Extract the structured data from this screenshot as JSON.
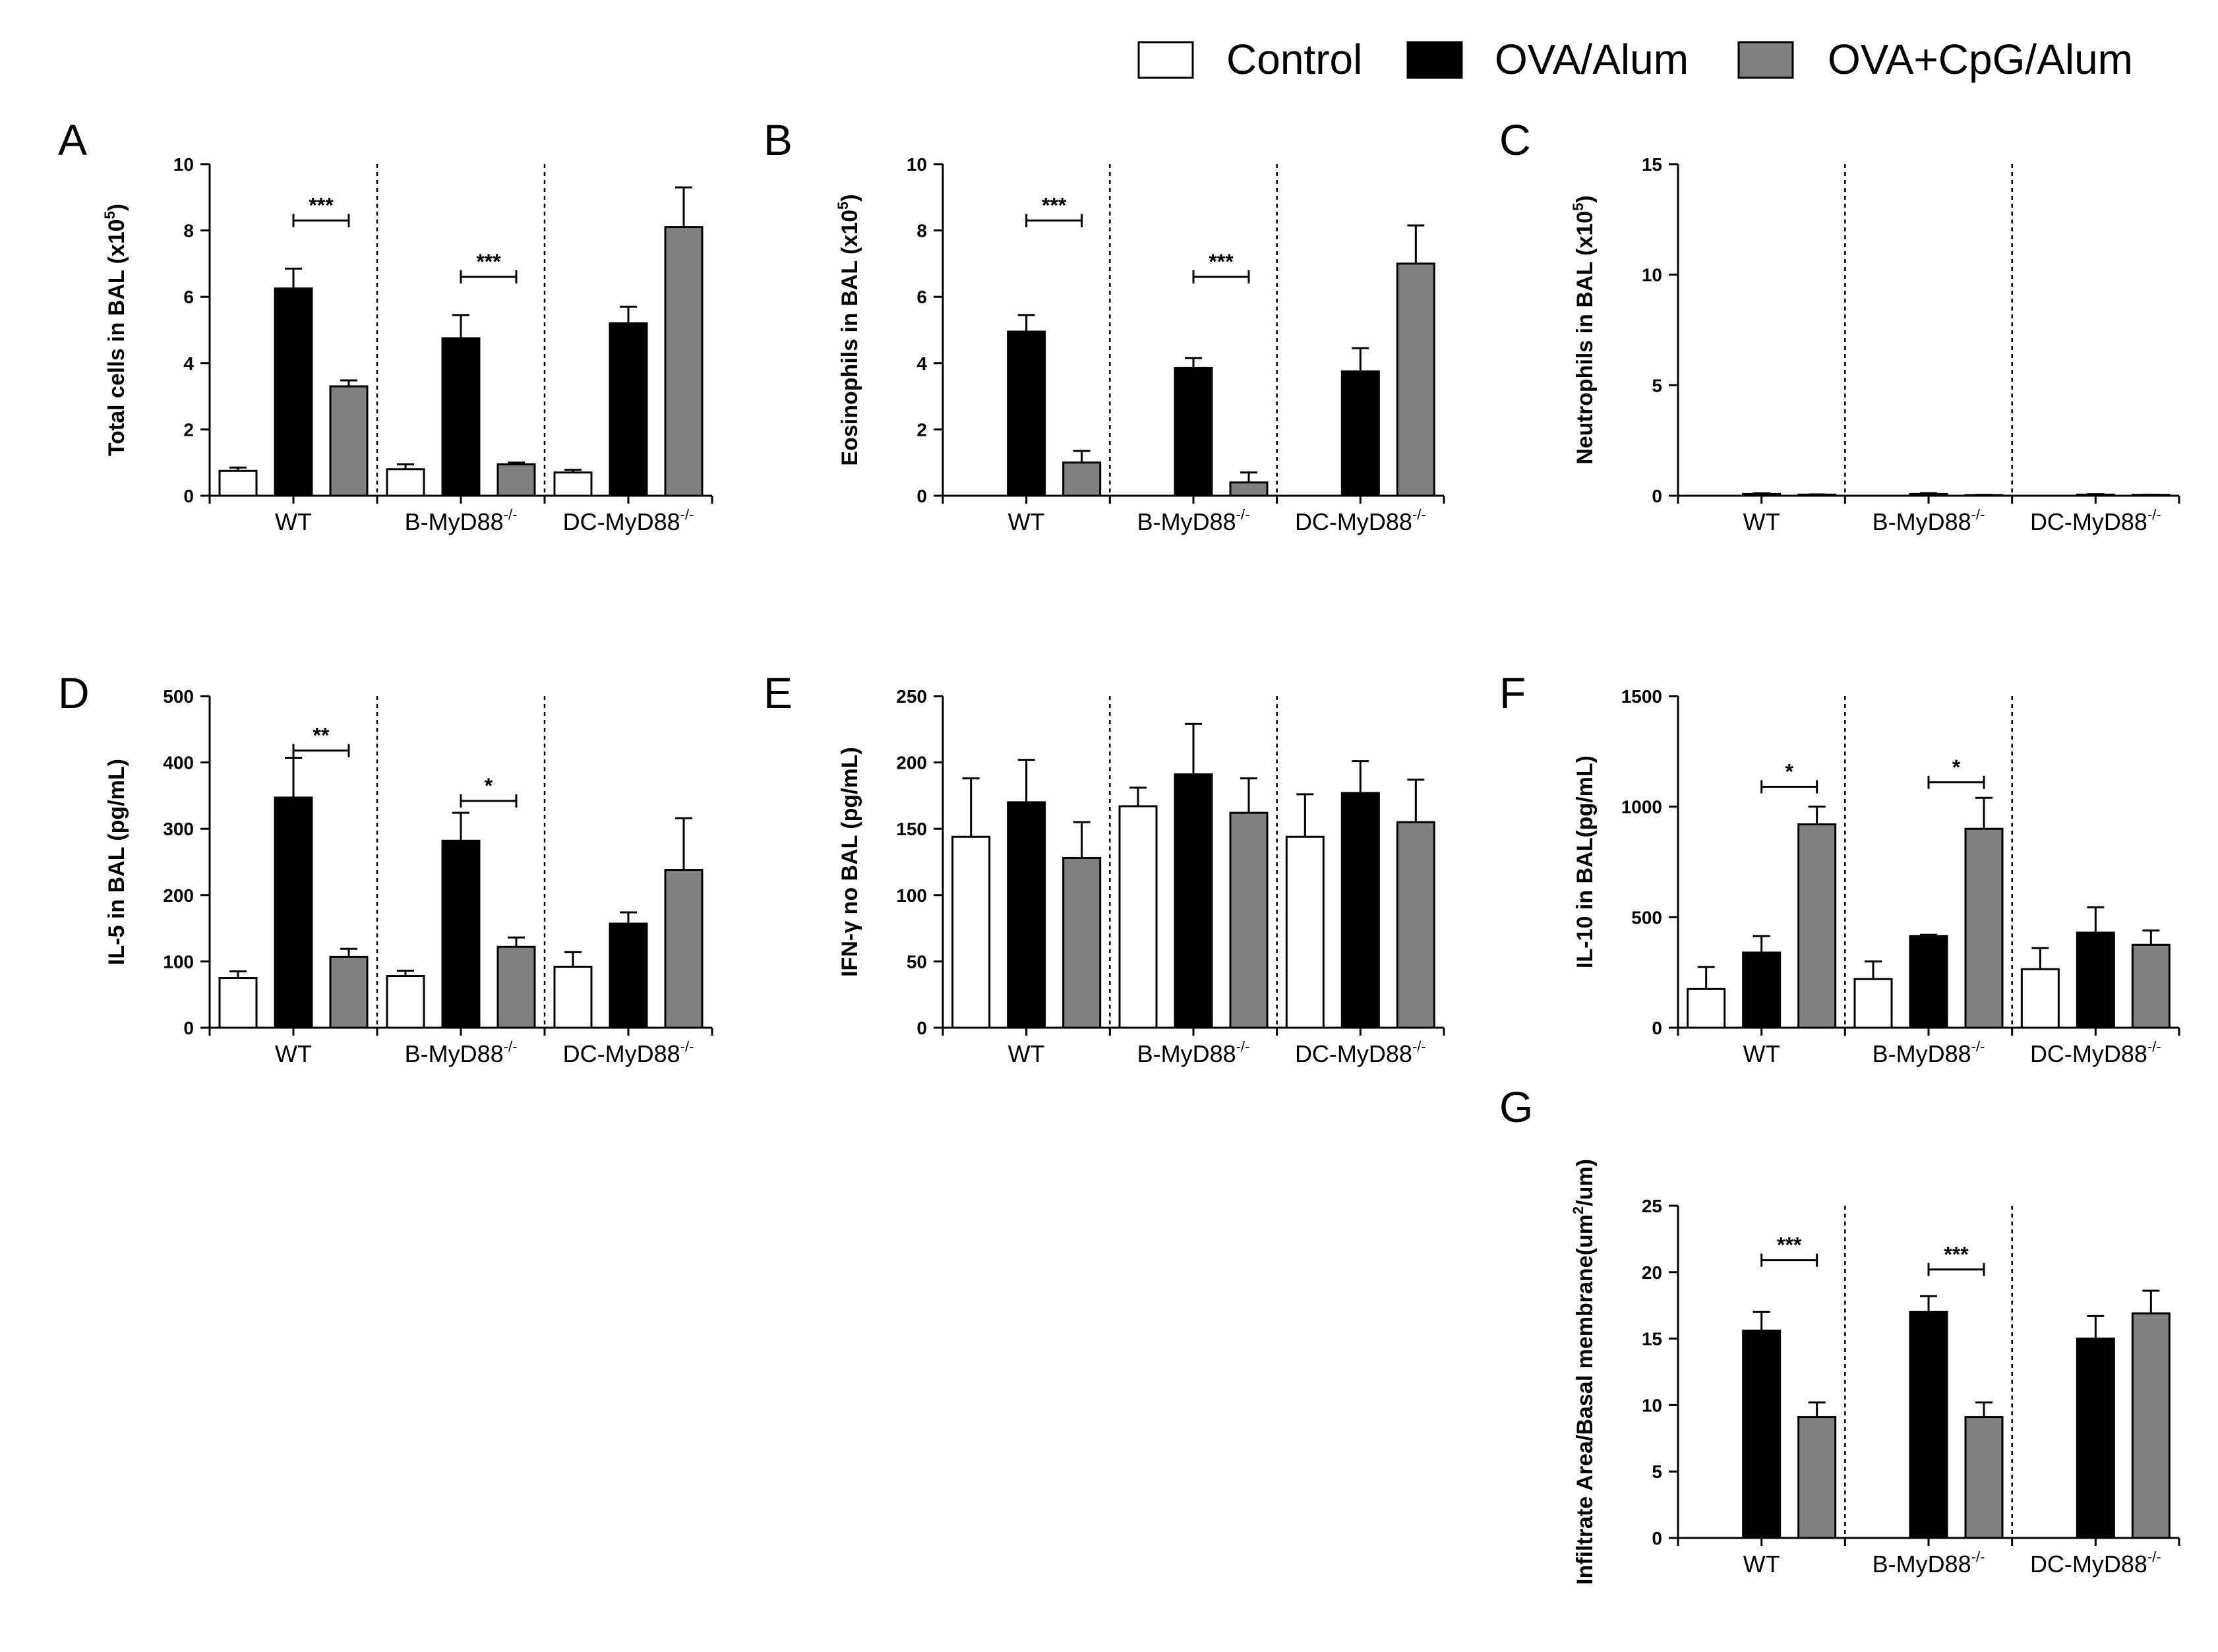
{
  "legend": [
    {
      "label": "Control",
      "color": "#ffffff"
    },
    {
      "label": "OVA/Alum",
      "color": "#000000"
    },
    {
      "label": "OVA+CpG/Alum",
      "color": "#808080"
    }
  ],
  "groups": [
    {
      "name": "WT",
      "sup": ""
    },
    {
      "name": "B-MyD88",
      "sup": "-/-"
    },
    {
      "name": "DC-MyD88",
      "sup": "-/-"
    }
  ],
  "chart_data": [
    {
      "id": "A",
      "panel_label": "A",
      "type": "bar",
      "ylabel": "Total cells in  BAL  (x10",
      "ylabel_sup": "5",
      "ylabel_end": ")",
      "ylim": [
        0,
        10
      ],
      "yticks": [
        "0",
        "2",
        "4",
        "6",
        "8",
        "10"
      ],
      "series": [
        {
          "name": "Control",
          "values": [
            0.75,
            0.8,
            0.7
          ],
          "errors": [
            0.1,
            0.15,
            0.08
          ]
        },
        {
          "name": "OVA/Alum",
          "values": [
            6.25,
            4.75,
            5.2
          ],
          "errors": [
            0.6,
            0.7,
            0.5
          ]
        },
        {
          "name": "OVA+CpG/Alum",
          "values": [
            3.3,
            0.95,
            8.1
          ],
          "errors": [
            0.18,
            0.05,
            1.2
          ]
        }
      ],
      "significance": [
        {
          "group": 0,
          "from": 1,
          "to": 2,
          "y": 8.3,
          "label": "***"
        },
        {
          "group": 1,
          "from": 1,
          "to": 2,
          "y": 6.6,
          "label": "***"
        }
      ]
    },
    {
      "id": "B",
      "panel_label": "B",
      "type": "bar",
      "ylabel": "Eosinophils in BAL  (x10",
      "ylabel_sup": "5",
      "ylabel_end": ")",
      "ylim": [
        0,
        10
      ],
      "yticks": [
        "0",
        "2",
        "4",
        "6",
        "8",
        "10"
      ],
      "series": [
        {
          "name": "Control",
          "values": [
            0,
            0,
            0
          ],
          "errors": [
            0,
            0,
            0
          ]
        },
        {
          "name": "OVA/Alum",
          "values": [
            4.95,
            3.85,
            3.75
          ],
          "errors": [
            0.5,
            0.3,
            0.7
          ]
        },
        {
          "name": "OVA+CpG/Alum",
          "values": [
            1.0,
            0.4,
            7.0
          ],
          "errors": [
            0.35,
            0.3,
            1.15
          ]
        }
      ],
      "significance": [
        {
          "group": 0,
          "from": 1,
          "to": 2,
          "y": 8.3,
          "label": "***"
        },
        {
          "group": 1,
          "from": 1,
          "to": 2,
          "y": 6.6,
          "label": "***"
        }
      ]
    },
    {
      "id": "C",
      "panel_label": "C",
      "type": "bar",
      "ylabel": "Neutrophils in BAL  (x10",
      "ylabel_sup": "5",
      "ylabel_end": ")",
      "ylim": [
        0,
        15
      ],
      "yticks": [
        "0",
        "5",
        "10",
        "15"
      ],
      "series": [
        {
          "name": "Control",
          "values": [
            0,
            0,
            0
          ],
          "errors": [
            0,
            0,
            0
          ]
        },
        {
          "name": "OVA/Alum",
          "values": [
            0.08,
            0.08,
            0.05
          ],
          "errors": [
            0.03,
            0.04,
            0.02
          ]
        },
        {
          "name": "OVA+CpG/Alum",
          "values": [
            0.05,
            0.03,
            0.04
          ],
          "errors": [
            0.01,
            0.01,
            0.01
          ]
        }
      ],
      "significance": []
    },
    {
      "id": "D",
      "panel_label": "D",
      "type": "bar",
      "ylabel": "IL-5 in BAL  (pg/mL)",
      "ylabel_sup": "",
      "ylabel_end": "",
      "ylim": [
        0,
        500
      ],
      "yticks": [
        "0",
        "100",
        "200",
        "300",
        "400",
        "500"
      ],
      "series": [
        {
          "name": "Control",
          "values": [
            75,
            78,
            92
          ],
          "errors": [
            10,
            8,
            22
          ]
        },
        {
          "name": "OVA/Alum",
          "values": [
            347,
            282,
            157
          ],
          "errors": [
            60,
            42,
            17
          ]
        },
        {
          "name": "OVA+CpG/Alum",
          "values": [
            107,
            122,
            238
          ],
          "errors": [
            12,
            14,
            78
          ]
        }
      ],
      "significance": [
        {
          "group": 0,
          "from": 1,
          "to": 2,
          "y": 418,
          "label": "**"
        },
        {
          "group": 1,
          "from": 1,
          "to": 2,
          "y": 342,
          "label": "*"
        }
      ]
    },
    {
      "id": "E",
      "panel_label": "E",
      "type": "bar",
      "ylabel": "IFN-γ no BAL  (pg/mL)",
      "ylabel_sup": "",
      "ylabel_end": "",
      "ylim": [
        0,
        250
      ],
      "yticks": [
        "0",
        "50",
        "100",
        "150",
        "200",
        "250"
      ],
      "series": [
        {
          "name": "Control",
          "values": [
            144,
            167,
            144
          ],
          "errors": [
            44,
            14,
            32
          ]
        },
        {
          "name": "OVA/Alum",
          "values": [
            170,
            191,
            177
          ],
          "errors": [
            32,
            38,
            24
          ]
        },
        {
          "name": "OVA+CpG/Alum",
          "values": [
            128,
            162,
            155
          ],
          "errors": [
            27,
            26,
            32
          ]
        }
      ],
      "significance": []
    },
    {
      "id": "F",
      "panel_label": "F",
      "type": "bar",
      "ylabel": "IL-10 in BAL(pg/mL)",
      "ylabel_sup": "",
      "ylabel_end": "",
      "ylim": [
        0,
        1500
      ],
      "yticks": [
        "0",
        "500",
        "1000",
        "1500"
      ],
      "series": [
        {
          "name": "Control",
          "values": [
            175,
            220,
            265
          ],
          "errors": [
            100,
            80,
            95
          ]
        },
        {
          "name": "OVA/Alum",
          "values": [
            340,
            415,
            430
          ],
          "errors": [
            75,
            5,
            115
          ]
        },
        {
          "name": "OVA+CpG/Alum",
          "values": [
            920,
            900,
            375
          ],
          "errors": [
            80,
            140,
            65
          ]
        }
      ],
      "significance": [
        {
          "group": 0,
          "from": 1,
          "to": 2,
          "y": 1090,
          "label": "*"
        },
        {
          "group": 1,
          "from": 1,
          "to": 2,
          "y": 1110,
          "label": "*"
        }
      ]
    },
    {
      "id": "G",
      "panel_label": "G",
      "type": "bar",
      "ylabel": "Infiltrate Area/Basal membrane(um",
      "ylabel_sup": "2",
      "ylabel_end": "/um)",
      "ylim": [
        0,
        25
      ],
      "yticks": [
        "0",
        "5",
        "10",
        "15",
        "20",
        "25"
      ],
      "series": [
        {
          "name": "Control",
          "values": [
            0,
            0,
            0
          ],
          "errors": [
            0,
            0,
            0
          ]
        },
        {
          "name": "OVA/Alum",
          "values": [
            15.6,
            17.0,
            15.0
          ],
          "errors": [
            1.4,
            1.2,
            1.7
          ]
        },
        {
          "name": "OVA+CpG/Alum",
          "values": [
            9.1,
            9.1,
            16.9
          ],
          "errors": [
            1.1,
            1.1,
            1.7
          ]
        }
      ],
      "significance": [
        {
          "group": 0,
          "from": 1,
          "to": 2,
          "y": 20.9,
          "label": "***"
        },
        {
          "group": 1,
          "from": 1,
          "to": 2,
          "y": 20.2,
          "label": "***"
        }
      ]
    }
  ]
}
